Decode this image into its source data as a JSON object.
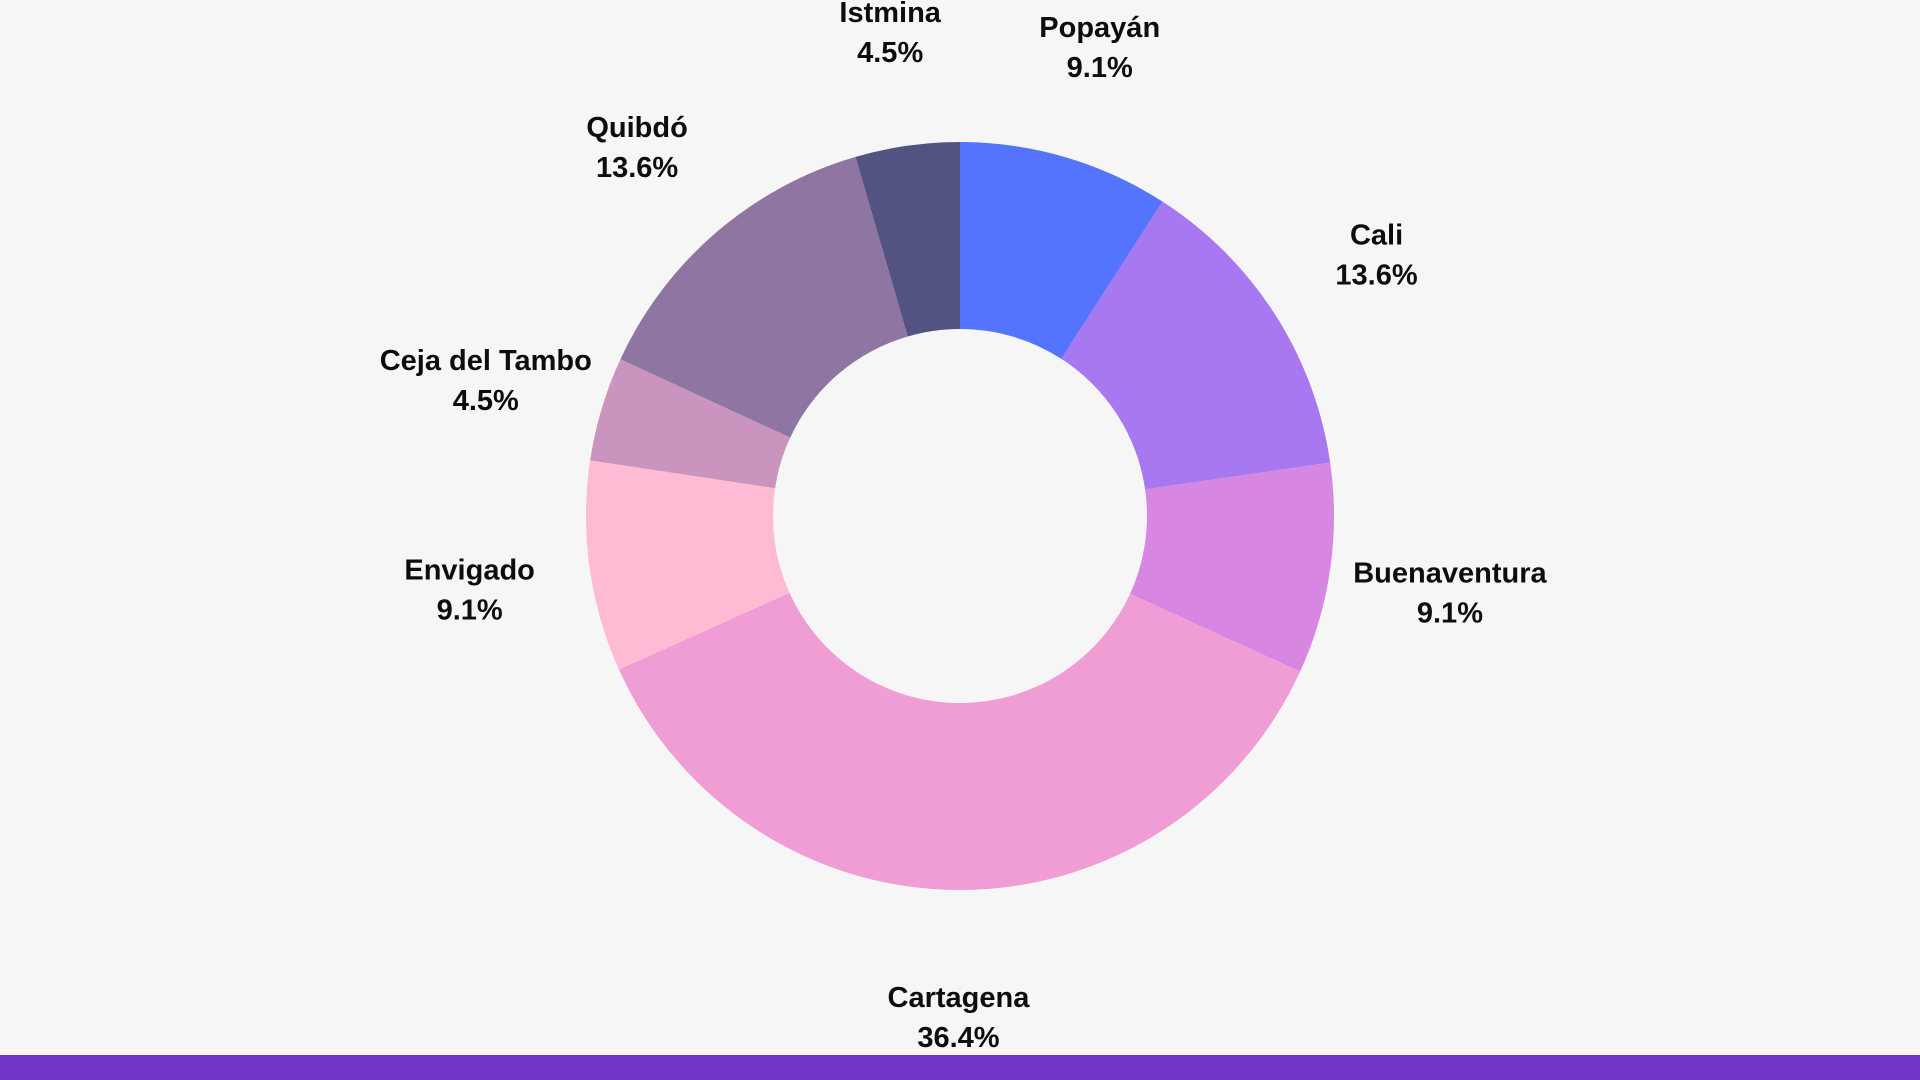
{
  "chart_data": {
    "type": "pie",
    "donut": true,
    "title": "",
    "start": "12 o'clock, clockwise",
    "slices": [
      {
        "label": "Popayán",
        "value": 9.1,
        "display": "9.1%",
        "color": "#5474fd"
      },
      {
        "label": "Cali",
        "value": 13.6,
        "display": "13.6%",
        "color": "#a878f0"
      },
      {
        "label": "Buenaventura",
        "value": 9.1,
        "display": "9.1%",
        "color": "#d787e2"
      },
      {
        "label": "Cartagena",
        "value": 36.4,
        "display": "36.4%",
        "color": "#f19dd5"
      },
      {
        "label": "Envigado",
        "value": 9.1,
        "display": "9.1%",
        "color": "#ffbad4"
      },
      {
        "label": "Ceja del Tambo",
        "value": 4.5,
        "display": "4.5%",
        "color": "#c994bd"
      },
      {
        "label": "Quibdó",
        "value": 13.6,
        "display": "13.6%",
        "color": "#8f75a1"
      },
      {
        "label": "Istmina",
        "value": 4.5,
        "display": "4.5%",
        "color": "#525380"
      }
    ]
  },
  "colors": {
    "background": "#f6f6f7",
    "bottom_bar": "#7035c4"
  }
}
